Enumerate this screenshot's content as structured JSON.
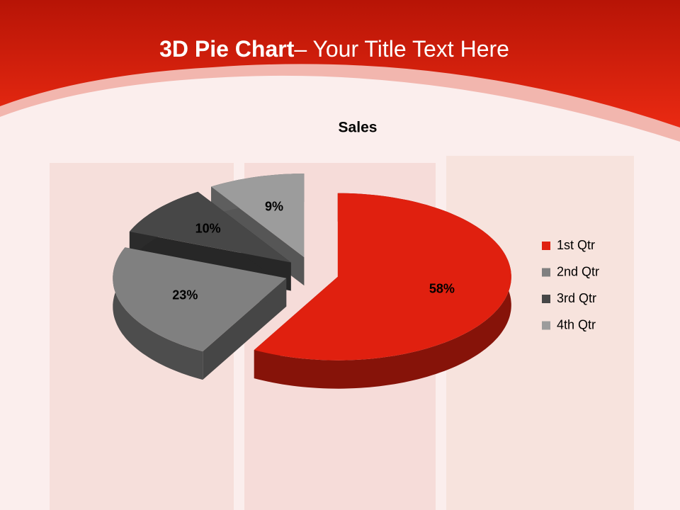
{
  "slide_title": {
    "bold": "3D Pie Chart",
    "rest": "– Your Title Text Here"
  },
  "chart_data": {
    "type": "pie",
    "title": "Sales",
    "categories": [
      "1st Qtr",
      "2nd Qtr",
      "3rd Qtr",
      "4th Qtr"
    ],
    "values": [
      58,
      23,
      10,
      9
    ],
    "value_labels": [
      "58%",
      "23%",
      "10%",
      "9%"
    ],
    "colors": [
      "#e0200f",
      "#808080",
      "#474747",
      "#9c9c9c"
    ],
    "legend": "right"
  }
}
